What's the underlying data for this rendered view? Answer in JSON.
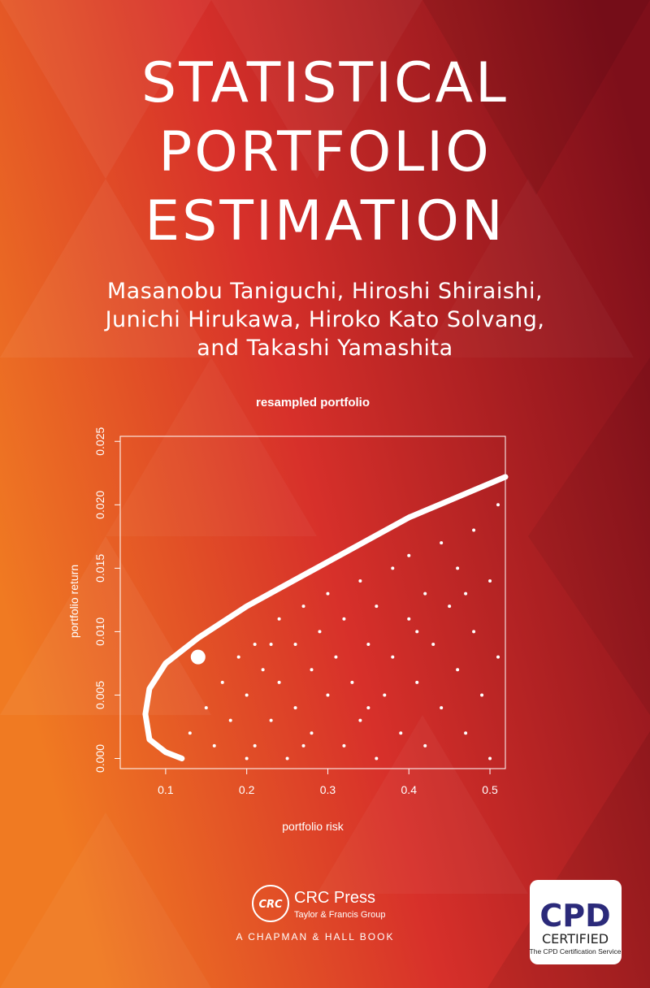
{
  "cover": {
    "title": [
      "STATISTICAL",
      "PORTFOLIO",
      "ESTIMATION"
    ],
    "authors": [
      "Masanobu Taniguchi, Hiroshi Shiraishi,",
      "Junichi Hirukawa, Hiroko Kato Solvang,",
      "and Takashi Yamashita"
    ],
    "publisher_logo": "CRC",
    "publisher": "CRC Press",
    "publisher_group": "Taylor & Francis Group",
    "imprint": "A CHAPMAN & HALL BOOK",
    "badge": {
      "top": "CPD",
      "middle": "CERTIFIED",
      "bottom": "The CPD Certification Service"
    }
  },
  "chart_data": {
    "type": "scatter",
    "title": "resampled portfolio",
    "x_label": "portfolio risk",
    "y_label": "portfolio return",
    "color": "#ffffff",
    "xlim": [
      0.044,
      0.519
    ],
    "ylim": [
      -0.0008,
      0.0254
    ],
    "xticks": [
      0.1,
      0.2,
      0.3,
      0.4,
      0.5
    ],
    "yticks": [
      {
        "value": 0,
        "label": "0.000"
      },
      0.005,
      {
        "value": 0.01,
        "label": "0.010"
      },
      0.015,
      {
        "value": 0.02,
        "label": "0.020"
      },
      0.025
    ],
    "x": [
      0.13,
      0.15,
      0.16,
      0.17,
      0.18,
      0.19,
      0.2,
      0.21,
      0.21,
      0.22,
      0.23,
      0.24,
      0.24,
      0.25,
      0.26,
      0.26,
      0.27,
      0.28,
      0.28,
      0.29,
      0.3,
      0.3,
      0.31,
      0.32,
      0.32,
      0.33,
      0.34,
      0.34,
      0.35,
      0.36,
      0.36,
      0.37,
      0.38,
      0.38,
      0.39,
      0.4,
      0.4,
      0.41,
      0.42,
      0.42,
      0.43,
      0.44,
      0.44,
      0.45,
      0.46,
      0.46,
      0.47,
      0.48,
      0.48,
      0.49,
      0.5,
      0.5,
      0.51,
      0.51,
      0.2,
      0.23,
      0.27,
      0.35,
      0.41,
      0.47
    ],
    "y": [
      0.002,
      0.004,
      0.001,
      0.006,
      0.003,
      0.008,
      0.005,
      0.001,
      0.009,
      0.007,
      0.003,
      0.011,
      0.006,
      0,
      0.009,
      0.004,
      0.012,
      0.007,
      0.002,
      0.01,
      0.005,
      0.013,
      0.008,
      0.001,
      0.011,
      0.006,
      0.014,
      0.003,
      0.009,
      0.012,
      0,
      0.005,
      0.015,
      0.008,
      0.002,
      0.011,
      0.016,
      0.006,
      0.013,
      0.001,
      0.009,
      0.017,
      0.004,
      0.012,
      0.007,
      0.015,
      0.002,
      0.018,
      0.01,
      0.005,
      0.014,
      0,
      0.02,
      0.008,
      0,
      0.009,
      0.001,
      0.004,
      0.01,
      0.013
    ],
    "frontier": {
      "x": [
        0.12,
        0.1,
        0.08,
        0.075,
        0.08,
        0.1,
        0.14,
        0.2,
        0.3,
        0.4,
        0.519
      ],
      "y": [
        0,
        0.0005,
        0.0015,
        0.0035,
        0.0055,
        0.0075,
        0.0095,
        0.012,
        0.0155,
        0.019,
        0.0222
      ]
    },
    "highlight": {
      "x": 0.14,
      "y": 0.008
    }
  }
}
